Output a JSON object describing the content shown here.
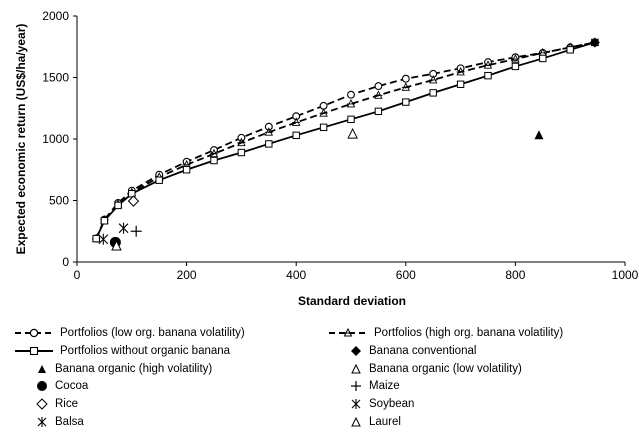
{
  "chart_data": {
    "type": "scatter",
    "title": "",
    "xlabel": "Standard deviation",
    "ylabel": "Expected economic return (US$/ha/year)",
    "xlim": [
      0,
      1000
    ],
    "ylim": [
      0,
      2000
    ],
    "xticks": [
      0,
      200,
      400,
      600,
      800,
      1000
    ],
    "yticks": [
      0,
      500,
      1000,
      1500,
      2000
    ],
    "grid": false,
    "legend_position": "bottom",
    "series": [
      {
        "name": "Portfolios (low org. banana volatility)",
        "kind": "line",
        "dash": "dash",
        "marker": "circle-open",
        "x": [
          35,
          50,
          75,
          100,
          150,
          200,
          250,
          300,
          350,
          400,
          450,
          500,
          550,
          600,
          650,
          700,
          750,
          800,
          850,
          900,
          945
        ],
        "y": [
          190,
          345,
          480,
          580,
          710,
          815,
          910,
          1010,
          1100,
          1185,
          1270,
          1360,
          1430,
          1490,
          1530,
          1575,
          1625,
          1665,
          1700,
          1745,
          1785
        ]
      },
      {
        "name": "Portfolios (high org. banana volatility)",
        "kind": "line",
        "dash": "dash",
        "marker": "asterisk-triangle",
        "x": [
          35,
          50,
          75,
          100,
          150,
          200,
          250,
          300,
          350,
          400,
          450,
          500,
          550,
          600,
          650,
          700,
          750,
          800,
          850,
          900,
          945
        ],
        "y": [
          190,
          340,
          470,
          565,
          690,
          790,
          880,
          970,
          1055,
          1135,
          1210,
          1285,
          1355,
          1420,
          1480,
          1545,
          1600,
          1650,
          1700,
          1745,
          1785
        ]
      },
      {
        "name": "Portfolios without organic banana",
        "kind": "line",
        "dash": "solid",
        "marker": "square-open",
        "x": [
          35,
          50,
          75,
          100,
          150,
          200,
          250,
          300,
          350,
          400,
          450,
          500,
          550,
          600,
          650,
          700,
          750,
          800,
          850,
          900,
          945
        ],
        "y": [
          190,
          335,
          460,
          555,
          665,
          750,
          825,
          890,
          960,
          1030,
          1095,
          1160,
          1225,
          1300,
          1375,
          1445,
          1515,
          1590,
          1655,
          1725,
          1785
        ]
      },
      {
        "name": "Banana conventional",
        "kind": "point",
        "marker": "diamond-filled",
        "x": [
          945
        ],
        "y": [
          1785
        ]
      },
      {
        "name": "Banana organic (high volatility)",
        "kind": "point",
        "marker": "triangle-filled",
        "x": [
          843
        ],
        "y": [
          1030
        ]
      },
      {
        "name": "Banana organic (low volatility)",
        "kind": "point",
        "marker": "triangle-open",
        "x": [
          503
        ],
        "y": [
          1040
        ]
      },
      {
        "name": "Cocoa",
        "kind": "point",
        "marker": "circle-filled",
        "x": [
          70
        ],
        "y": [
          160
        ]
      },
      {
        "name": "Maize",
        "kind": "point",
        "marker": "plus",
        "x": [
          108
        ],
        "y": [
          250
        ]
      },
      {
        "name": "Rice",
        "kind": "point",
        "marker": "diamond-open",
        "x": [
          103
        ],
        "y": [
          495
        ]
      },
      {
        "name": "Soybean",
        "kind": "point",
        "marker": "asterisk",
        "x": [
          85
        ],
        "y": [
          275
        ]
      },
      {
        "name": "Balsa",
        "kind": "point",
        "marker": "asterisk",
        "x": [
          48
        ],
        "y": [
          185
        ]
      },
      {
        "name": "Laurel",
        "kind": "point",
        "marker": "triangle-open",
        "x": [
          72
        ],
        "y": [
          130
        ]
      }
    ]
  }
}
